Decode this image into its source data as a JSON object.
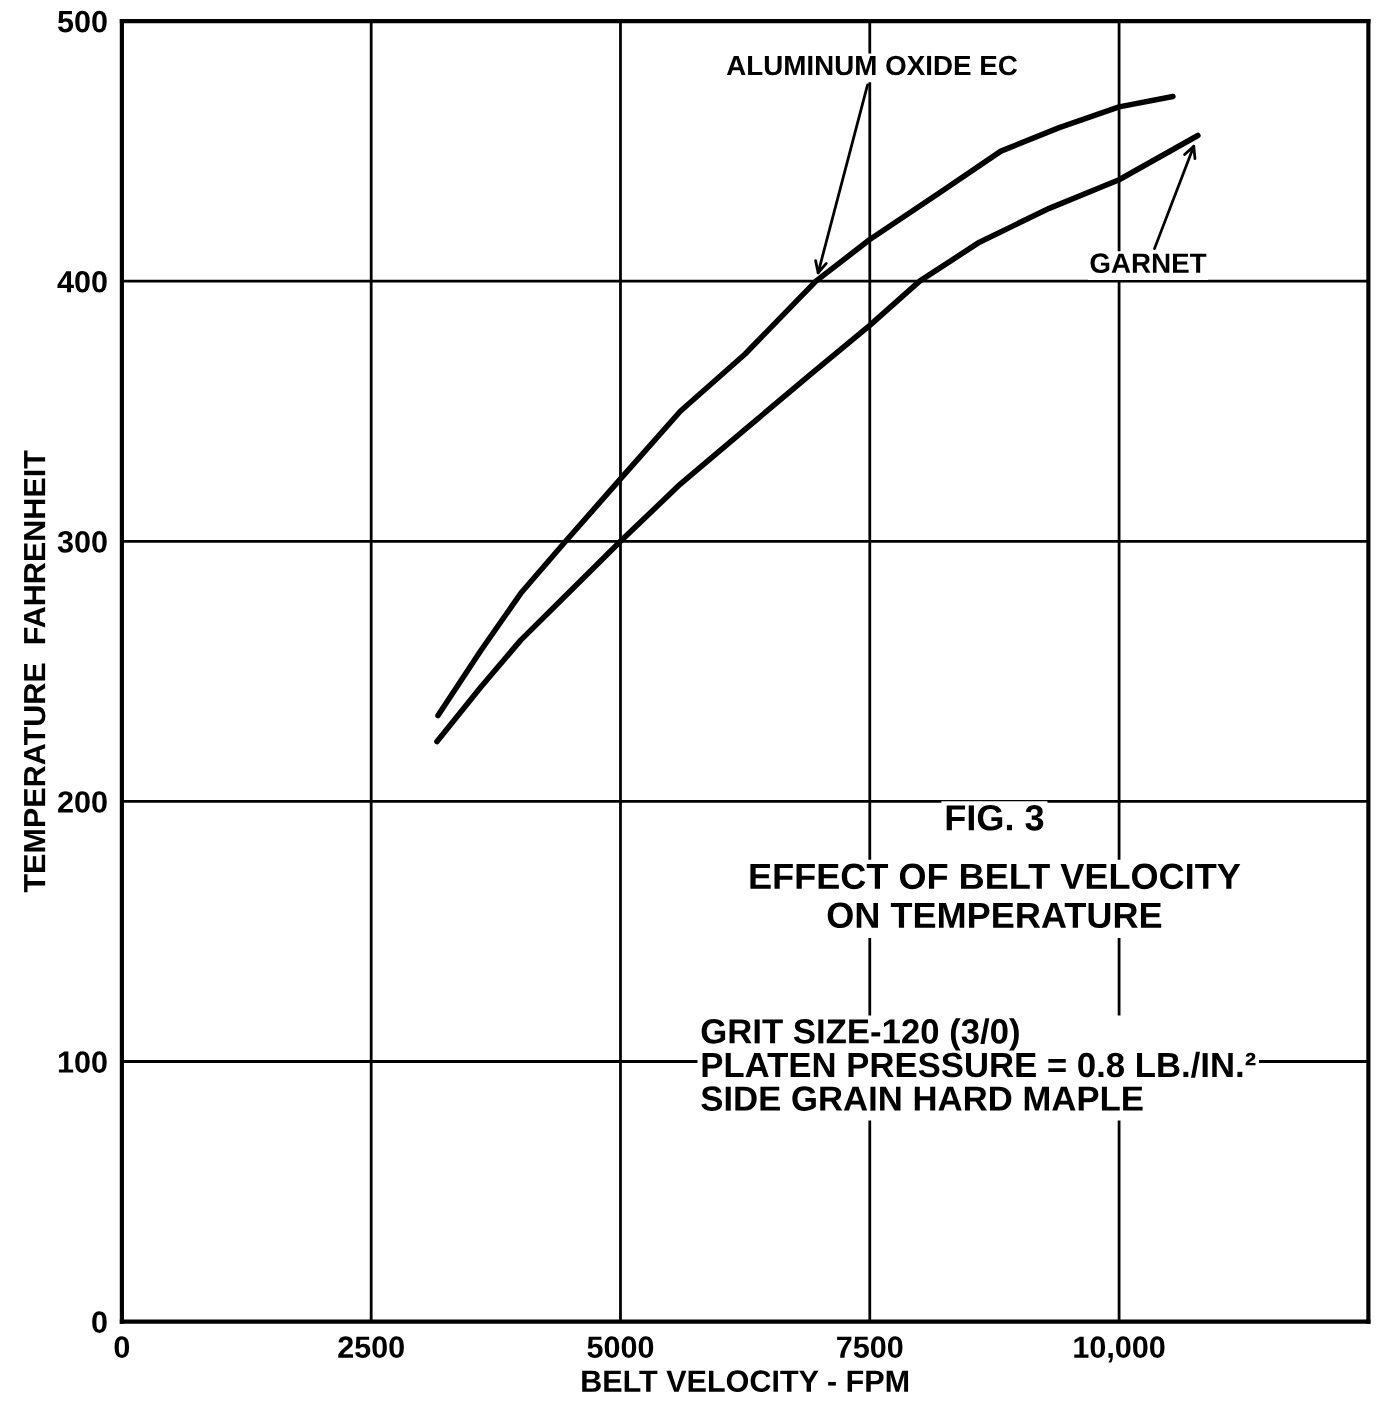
{
  "chart_data": {
    "type": "line",
    "title": "FIG. 3",
    "subtitle": "EFFECT OF BELT VELOCITY\nON TEMPERATURE",
    "annotations": [
      "GRIT SIZE-120 (3/0)\nPLATEN PRESSURE = 0.8 LB./IN.²\nSIDE GRAIN HARD MAPLE"
    ],
    "xlabel": "BELT VELOCITY - FPM",
    "ylabel": "TEMPERATURE  FAHRENHEIT",
    "series": [
      {
        "name": "ALUMINUM OXIDE EC",
        "color": "#000000",
        "x": [
          3170,
          3600,
          4000,
          4450,
          5000,
          5600,
          6250,
          6960,
          7500,
          8200,
          8815,
          9400,
          10000,
          10540
        ],
        "values": [
          233,
          258,
          280,
          300,
          324,
          350,
          372,
          400,
          416,
          434,
          450,
          459,
          467,
          471
        ]
      },
      {
        "name": "GARNET",
        "color": "#000000",
        "x": [
          3160,
          3600,
          4000,
          4500,
          5000,
          5600,
          6250,
          6900,
          7500,
          8000,
          8600,
          9300,
          10000,
          10790
        ],
        "values": [
          223,
          244,
          262,
          281,
          300,
          322,
          343,
          364,
          383,
          400,
          415,
          428,
          439,
          456
        ]
      }
    ],
    "xlim": [
      0,
      12500
    ],
    "ylim": [
      0,
      500
    ],
    "xticks": [
      0,
      2500,
      5000,
      7500,
      {
        "value": 10000,
        "label": "10,000"
      }
    ],
    "yticks": [
      0,
      100,
      200,
      300,
      400,
      500
    ],
    "grid": true,
    "marker": "none",
    "line_style": "solid"
  }
}
